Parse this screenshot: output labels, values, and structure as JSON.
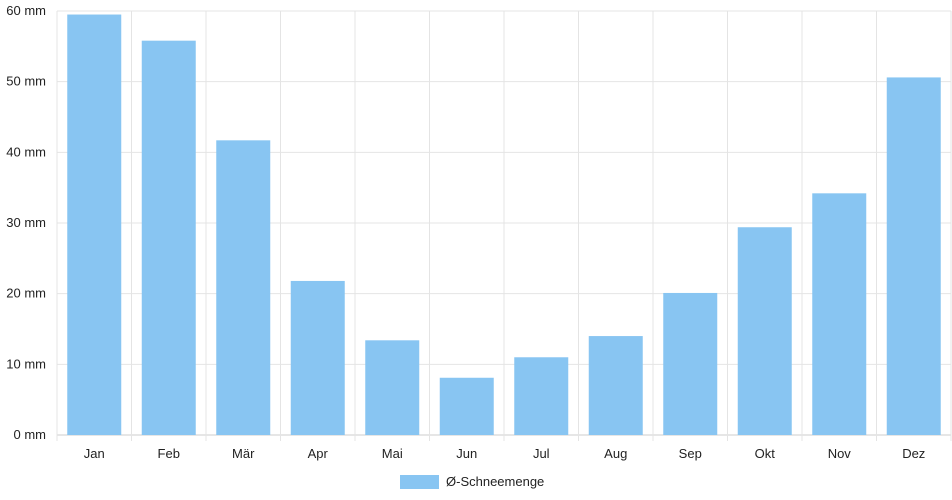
{
  "chart_data": {
    "type": "bar",
    "categories": [
      "Jan",
      "Feb",
      "Mär",
      "Apr",
      "Mai",
      "Jun",
      "Jul",
      "Aug",
      "Sep",
      "Okt",
      "Nov",
      "Dez"
    ],
    "series": [
      {
        "name": "Ø-Schneemenge",
        "values": [
          59.5,
          55.8,
          41.7,
          21.8,
          13.4,
          8.1,
          11.0,
          14.0,
          20.1,
          29.4,
          34.2,
          50.6
        ],
        "color": "#88c5f2"
      }
    ],
    "title": "",
    "xlabel": "",
    "ylabel": "",
    "ylim": [
      0,
      60
    ],
    "yticks": [
      "0 mm",
      "10 mm",
      "20 mm",
      "30 mm",
      "40 mm",
      "50 mm",
      "60 mm"
    ],
    "grid": true,
    "legend_position": "bottom-center"
  }
}
